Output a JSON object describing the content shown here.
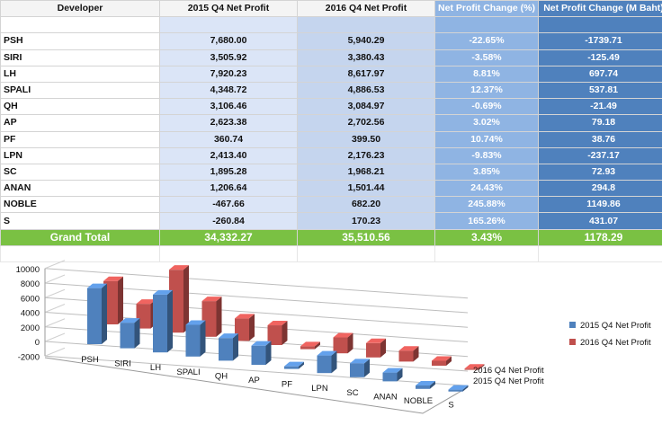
{
  "table": {
    "headers": [
      "Developer",
      "2015 Q4 Net Profit",
      "2016 Q4 Net Profit",
      "Net Profit Change (%)",
      "Net Profit Change (M Baht)"
    ],
    "rows": [
      [
        "PSH",
        "7,680.00",
        "5,940.29",
        "-22.65%",
        "-1739.71"
      ],
      [
        "SIRI",
        "3,505.92",
        "3,380.43",
        "-3.58%",
        "-125.49"
      ],
      [
        "LH",
        "7,920.23",
        "8,617.97",
        "8.81%",
        "697.74"
      ],
      [
        "SPALI",
        "4,348.72",
        "4,886.53",
        "12.37%",
        "537.81"
      ],
      [
        "QH",
        "3,106.46",
        "3,084.97",
        "-0.69%",
        "-21.49"
      ],
      [
        "AP",
        "2,623.38",
        "2,702.56",
        "3.02%",
        "79.18"
      ],
      [
        "PF",
        "360.74",
        "399.50",
        "10.74%",
        "38.76"
      ],
      [
        "LPN",
        "2,413.40",
        "2,176.23",
        "-9.83%",
        "-237.17"
      ],
      [
        "SC",
        "1,895.28",
        "1,968.21",
        "3.85%",
        "72.93"
      ],
      [
        "ANAN",
        "1,206.64",
        "1,501.44",
        "24.43%",
        "294.8"
      ],
      [
        "NOBLE",
        "-467.66",
        "682.20",
        "245.88%",
        "1149.86"
      ],
      [
        "S",
        "-260.84",
        "170.23",
        "165.26%",
        "431.07"
      ]
    ],
    "total": [
      "Grand Total",
      "34,332.27",
      "35,510.56",
      "3.43%",
      "1178.29"
    ]
  },
  "chart_data": {
    "type": "bar",
    "subtype": "3d-clustered-column",
    "categories": [
      "PSH",
      "SIRI",
      "LH",
      "SPALI",
      "QH",
      "AP",
      "PF",
      "LPN",
      "SC",
      "ANAN",
      "NOBLE",
      "S"
    ],
    "series": [
      {
        "name": "2015 Q4 Net Profit",
        "color": "#4f81bd",
        "values": [
          7680.0,
          3505.92,
          7920.23,
          4348.72,
          3106.46,
          2623.38,
          360.74,
          2413.4,
          1895.28,
          1206.64,
          -467.66,
          -260.84
        ]
      },
      {
        "name": "2016 Q4 Net Profit",
        "color": "#c0504d",
        "values": [
          5940.29,
          3380.43,
          8617.97,
          4886.53,
          3084.97,
          2702.56,
          399.5,
          2176.23,
          1968.21,
          1501.44,
          682.2,
          170.23
        ]
      }
    ],
    "yticks": [
      "10000",
      "8000",
      "6000",
      "4000",
      "2000",
      "0",
      "-2000"
    ],
    "ylim": [
      -2000,
      10000
    ],
    "depth_labels": [
      "2016 Q4 Net Profit",
      "2015 Q4 Net Profit"
    ],
    "legend_position": "right",
    "grid": true
  }
}
